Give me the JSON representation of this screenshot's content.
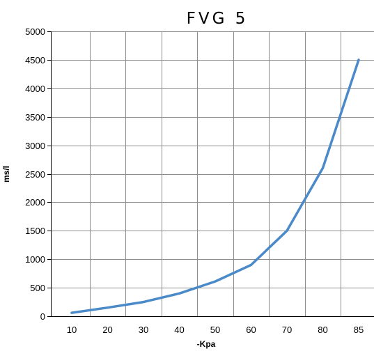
{
  "chart_data": {
    "type": "line",
    "title": "FVG 5",
    "xlabel": "-Kpa",
    "ylabel": "ms/l",
    "categories": [
      "10",
      "20",
      "30",
      "40",
      "50",
      "60",
      "70",
      "80",
      "85"
    ],
    "series": [
      {
        "values": [
          60,
          150,
          250,
          400,
          610,
          900,
          1500,
          2600,
          4500
        ],
        "color": "#4a8ac9"
      }
    ],
    "yticks": [
      "0",
      "500",
      "1000",
      "1500",
      "2000",
      "2500",
      "3000",
      "3500",
      "4000",
      "4500",
      "5000"
    ],
    "ylim": [
      0,
      5000
    ],
    "grid": true,
    "legend": "none"
  }
}
